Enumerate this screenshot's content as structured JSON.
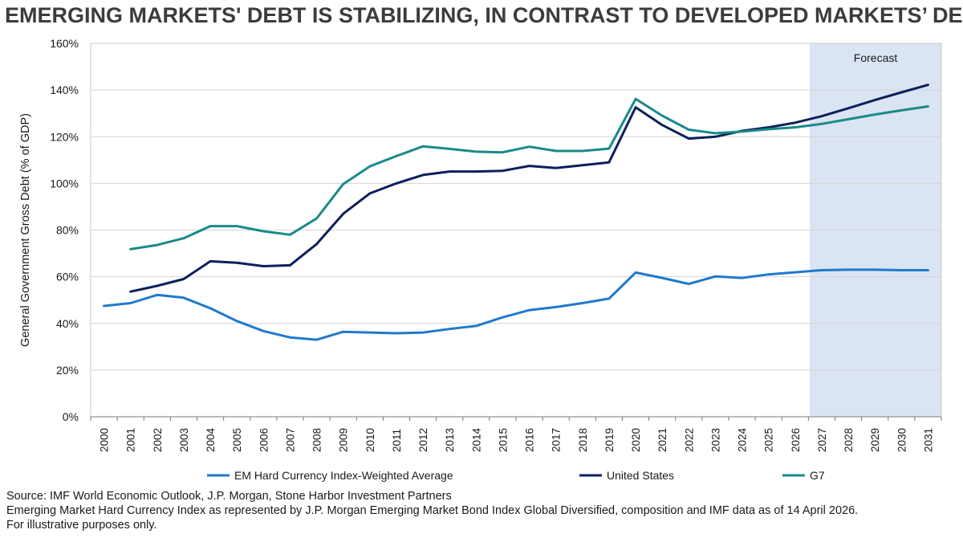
{
  "title": "EMERGING MARKETS' DEBT IS STABILIZING, IN CONTRAST TO DEVELOPED MARKETS’ DEBT",
  "footnotes": [
    "Source: IMF World Economic Outlook, J.P. Morgan, Stone Harbor Investment Partners",
    "Emerging Market Hard Currency Index as represented by J.P. Morgan Emerging Market Bond Index Global Diversified, composition and IMF data as of 14 April 2026.",
    "For illustrative purposes only."
  ],
  "chart_data": {
    "type": "line",
    "title": "EMERGING MARKETS' DEBT IS STABILIZING, IN CONTRAST TO DEVELOPED MARKETS’ DEBT",
    "xlabel": "",
    "ylabel": "General Government Gross Debt (% of GDP)",
    "x": [
      "2000",
      "2001",
      "2002",
      "2003",
      "2004",
      "2005",
      "2006",
      "2007",
      "2008",
      "2009",
      "2010",
      "2011",
      "2012",
      "2013",
      "2014",
      "2015",
      "2016",
      "2017",
      "2018",
      "2019",
      "2020",
      "2021",
      "2022",
      "2023",
      "2024",
      "2025",
      "2026",
      "2027",
      "2028",
      "2029",
      "2030",
      "2031"
    ],
    "ylim": [
      0,
      160
    ],
    "yticks": [
      0,
      20,
      40,
      60,
      80,
      100,
      120,
      140,
      160
    ],
    "ytick_labels": [
      "0%",
      "20%",
      "40%",
      "60%",
      "80%",
      "100%",
      "120%",
      "140%",
      "160%"
    ],
    "grid": true,
    "legend_position": "bottom",
    "forecast": {
      "label": "Forecast",
      "start": "2026",
      "end": "2031",
      "color": "#dbe4f3"
    },
    "series": [
      {
        "name": "EM Hard Currency Index-Weighted Average",
        "color": "#1f7acb",
        "values": [
          47.5,
          48.7,
          52.2,
          51.0,
          46.5,
          41.0,
          36.7,
          34.0,
          33.0,
          36.4,
          36.1,
          35.8,
          36.1,
          37.6,
          38.9,
          42.6,
          45.7,
          47.0,
          48.7,
          50.6,
          61.8,
          59.5,
          56.9,
          60.1,
          59.5,
          61.0,
          61.9,
          62.8,
          63.0,
          63.0,
          62.8,
          62.8
        ]
      },
      {
        "name": "United States",
        "color": "#0d1f5c",
        "values": [
          null,
          53.6,
          56.1,
          59.0,
          66.6,
          66.0,
          64.5,
          64.9,
          74.0,
          87.0,
          95.7,
          100.0,
          103.6,
          105.1,
          105.1,
          105.4,
          107.5,
          106.6,
          107.8,
          109.0,
          132.6,
          125.0,
          119.2,
          120.0,
          122.5,
          124.0,
          126.0,
          128.8,
          132.2,
          135.7,
          139.0,
          142.2
        ]
      },
      {
        "name": "G7",
        "color": "#198a8a",
        "values": [
          null,
          71.8,
          73.6,
          76.5,
          81.7,
          81.7,
          79.5,
          78.0,
          85.0,
          99.7,
          107.3,
          111.7,
          115.9,
          114.8,
          113.6,
          113.3,
          115.7,
          113.9,
          113.9,
          114.9,
          136.2,
          129.0,
          123.0,
          121.5,
          122.2,
          123.2,
          124.0,
          125.5,
          127.5,
          129.5,
          131.3,
          133.0
        ]
      }
    ]
  }
}
